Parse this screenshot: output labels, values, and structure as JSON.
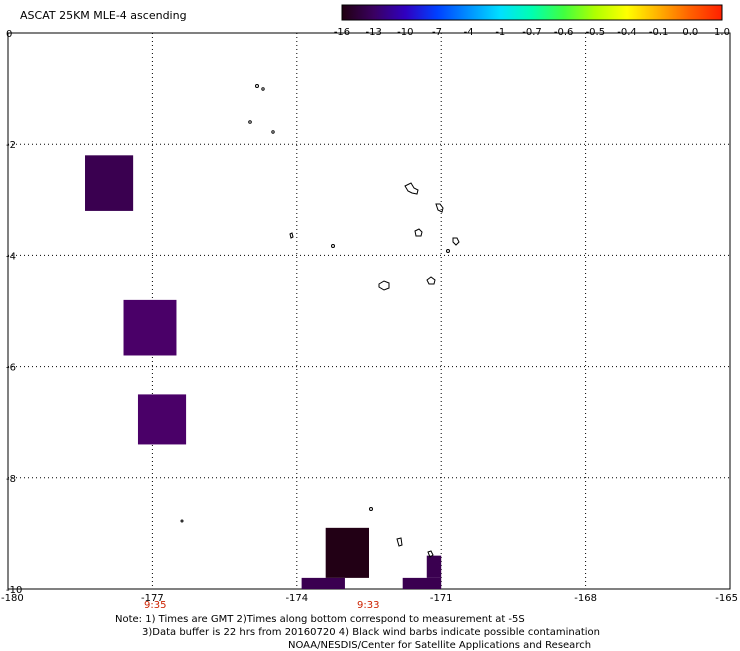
{
  "title": "ASCAT 25KM MLE-4 ascending",
  "colorbar": {
    "labels": [
      "-16",
      "-13",
      "-10",
      "-7",
      "-4",
      "-1",
      "-0.7",
      "-0.6",
      "-0.5",
      "-0.4",
      "-0.1",
      "0.0",
      "1.0"
    ],
    "colors": [
      "#200010",
      "#3a0060",
      "#3000c0",
      "#0040ff",
      "#0090ff",
      "#00e0ff",
      "#00ffb0",
      "#40ff40",
      "#b0ff00",
      "#ffff00",
      "#ffb000",
      "#ff6000",
      "#ff2000"
    ]
  },
  "axes": {
    "x_tick_labels": [
      "-180",
      "-177",
      "-174",
      "-171",
      "-168",
      "-165"
    ],
    "y_tick_labels": [
      "0",
      "-2",
      "-4",
      "-6",
      "-8",
      "-10"
    ],
    "x_range": [
      -180,
      -165
    ],
    "y_range": [
      0,
      -10
    ]
  },
  "time_labels": [
    "9:35",
    "9:33"
  ],
  "notes": [
    "Note: 1) Times are GMT 2)Times along bottom correspond to measurement at -5S",
    "3)Data buffer is 22 hrs from 20160720 4) Black wind barbs indicate possible contamination",
    "NOAA/NESDIS/Center for Satellite Applications and Research"
  ],
  "data_swaths": [
    {
      "lon_min": -178.4,
      "lon_max": -177.4,
      "lat_min": -3.2,
      "lat_max": -2.2,
      "color": "#3a0050"
    },
    {
      "lon_min": -177.6,
      "lon_max": -176.5,
      "lat_min": -5.8,
      "lat_max": -4.8,
      "color": "#4a0068"
    },
    {
      "lon_min": -177.3,
      "lon_max": -176.3,
      "lat_min": -7.4,
      "lat_max": -6.5,
      "color": "#4a0068"
    },
    {
      "lon_min": -173.4,
      "lon_max": -172.5,
      "lat_min": -9.8,
      "lat_max": -8.9,
      "color": "#220015"
    },
    {
      "lon_min": -173.9,
      "lon_max": -173.0,
      "lat_min": -10.0,
      "lat_max": -9.8,
      "color": "#3a0050"
    },
    {
      "lon_min": -171.8,
      "lon_max": -171.0,
      "lat_min": -10.0,
      "lat_max": -9.8,
      "color": "#3a0050"
    },
    {
      "lon_min": -171.3,
      "lon_max": -171.0,
      "lat_min": -9.8,
      "lat_max": -9.4,
      "color": "#3a0050"
    }
  ]
}
